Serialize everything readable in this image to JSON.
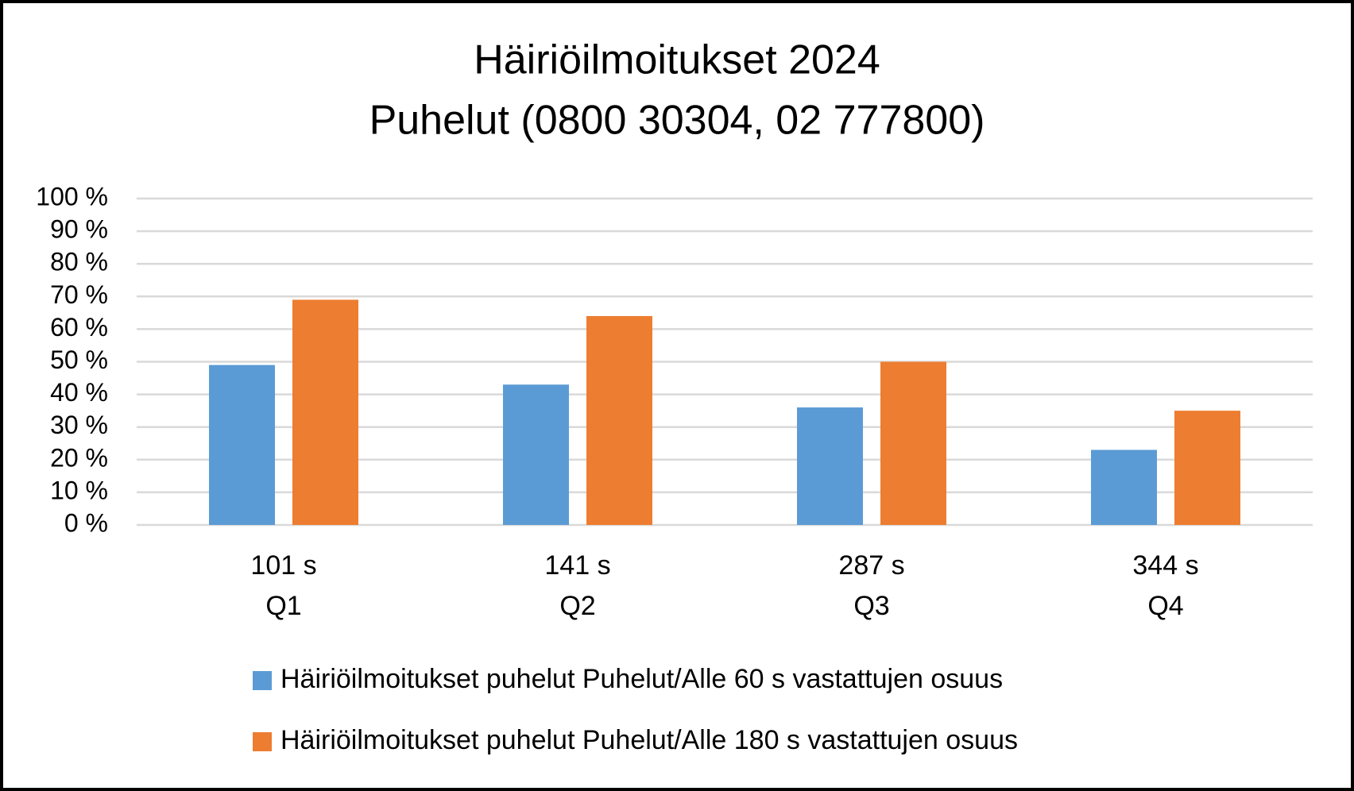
{
  "chart_data": {
    "type": "bar",
    "title": "Häiriöilmoitukset 2024",
    "subtitle": "Puhelut (0800 30304, 02 777800)",
    "categories": [
      [
        "101 s",
        "Q1"
      ],
      [
        "141 s",
        "Q2"
      ],
      [
        "287 s",
        "Q3"
      ],
      [
        "344 s",
        "Q4"
      ]
    ],
    "series": [
      {
        "name": "Häiriöilmoitukset puhelut Puhelut/Alle 60 s vastattujen osuus",
        "color": "#5b9bd5",
        "values": [
          49,
          43,
          36,
          23
        ]
      },
      {
        "name": "Häiriöilmoitukset puhelut Puhelut/Alle 180 s vastattujen osuus",
        "color": "#ed7d31",
        "values": [
          69,
          64,
          50,
          35
        ]
      }
    ],
    "ylim": [
      0,
      100
    ],
    "yticks": [
      {
        "value": 0,
        "label": "0 %"
      },
      {
        "value": 10,
        "label": "10 %"
      },
      {
        "value": 20,
        "label": "20 %"
      },
      {
        "value": 30,
        "label": "30 %"
      },
      {
        "value": 40,
        "label": "40 %"
      },
      {
        "value": 50,
        "label": "50 %"
      },
      {
        "value": 60,
        "label": "60 %"
      },
      {
        "value": 70,
        "label": "70 %"
      },
      {
        "value": 80,
        "label": "80 %"
      },
      {
        "value": 90,
        "label": "90 %"
      },
      {
        "value": 100,
        "label": "100 %"
      }
    ],
    "grid": true,
    "legend": "bottom"
  }
}
